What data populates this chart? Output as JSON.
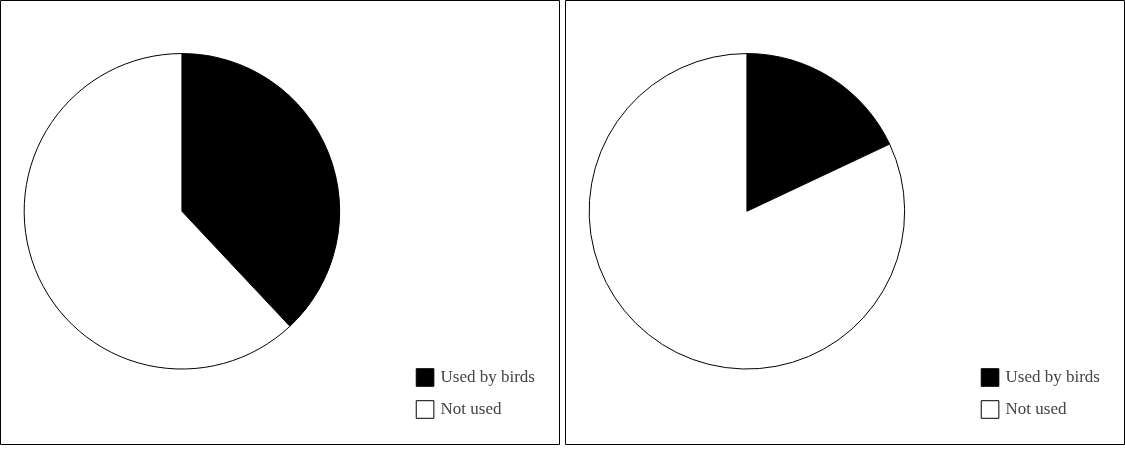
{
  "chart_data": [
    {
      "type": "pie",
      "categories": [
        "Used by birds",
        "Not used"
      ],
      "values": [
        38,
        62
      ],
      "colors": [
        "#000000",
        "#ffffff"
      ],
      "legend": "bottom right"
    },
    {
      "type": "pie",
      "categories": [
        "Used by birds",
        "Not used"
      ],
      "values": [
        18,
        82
      ],
      "colors": [
        "#000000",
        "#ffffff"
      ],
      "legend": "bottom right"
    }
  ]
}
